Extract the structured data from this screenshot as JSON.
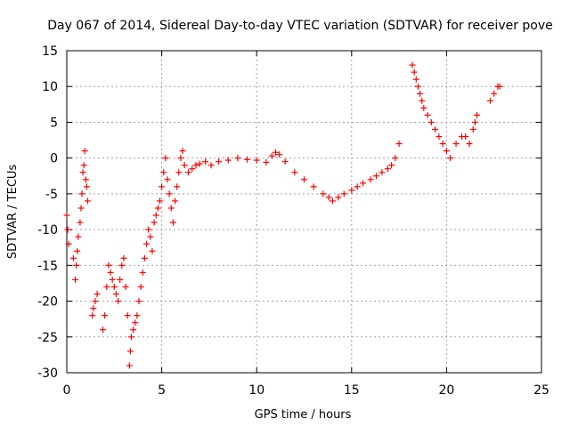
{
  "chart_data": {
    "type": "scatter",
    "title": "Day 067 of 2014, Sidereal Day-to-day VTEC variation (SDTVAR) for receiver pove",
    "xlabel": "GPS time / hours",
    "ylabel": "SDTVAR / TECUs",
    "xlim": [
      0,
      25
    ],
    "ylim": [
      -30,
      15
    ],
    "xticks": [
      0,
      5,
      10,
      15,
      20,
      25
    ],
    "yticks": [
      -30,
      -25,
      -20,
      -15,
      -10,
      -5,
      0,
      5,
      10,
      15
    ],
    "xtick_labels": [
      "0",
      "5",
      "10",
      "15",
      "20",
      "25"
    ],
    "ytick_labels": [
      "-30",
      "-25",
      "-20",
      "-15",
      "-10",
      "-5",
      "0",
      "5",
      "10",
      "15"
    ],
    "grid": true,
    "marker": "+",
    "color": "#ff0000",
    "series": [
      {
        "name": "SDTVAR",
        "x": [
          0.0,
          0.05,
          0.1,
          0.35,
          0.45,
          0.5,
          0.55,
          0.6,
          0.7,
          0.75,
          0.8,
          0.85,
          0.9,
          0.95,
          1.0,
          1.05,
          1.1,
          1.35,
          1.4,
          1.5,
          1.6,
          1.9,
          2.0,
          2.1,
          2.2,
          2.3,
          2.4,
          2.5,
          2.6,
          2.7,
          2.8,
          2.9,
          3.0,
          3.1,
          3.2,
          3.3,
          3.35,
          3.4,
          3.5,
          3.6,
          3.7,
          3.8,
          3.9,
          4.0,
          4.1,
          4.2,
          4.3,
          4.4,
          4.5,
          4.6,
          4.7,
          4.8,
          4.9,
          5.0,
          5.1,
          5.2,
          5.3,
          5.4,
          5.5,
          5.6,
          5.7,
          5.8,
          5.9,
          6.0,
          6.1,
          6.2,
          6.4,
          6.6,
          6.8,
          7.0,
          7.3,
          7.6,
          8.0,
          8.5,
          9.0,
          9.5,
          10.0,
          10.5,
          10.8,
          11.0,
          11.2,
          11.5,
          12.0,
          12.5,
          13.0,
          13.5,
          13.8,
          14.0,
          14.3,
          14.6,
          15.0,
          15.3,
          15.6,
          16.0,
          16.3,
          16.6,
          16.9,
          17.1,
          17.3,
          17.5,
          18.2,
          18.3,
          18.4,
          18.5,
          18.6,
          18.7,
          18.8,
          19.0,
          19.2,
          19.4,
          19.6,
          19.8,
          20.0,
          20.2,
          20.5,
          20.8,
          21.0,
          21.2,
          21.4,
          21.5,
          21.6,
          22.3,
          22.5,
          22.7,
          22.8
        ],
        "y": [
          -8,
          -10,
          -12,
          -14,
          -17,
          -15,
          -13,
          -11,
          -9,
          -7,
          -5,
          -2,
          -1,
          1,
          -3,
          -4,
          -6,
          -22,
          -21,
          -20,
          -19,
          -24,
          -22,
          -18,
          -15,
          -16,
          -17,
          -18,
          -19,
          -20,
          -17,
          -15,
          -14,
          -18,
          -22,
          -29,
          -27,
          -25,
          -24,
          -23,
          -22,
          -20,
          -18,
          -16,
          -14,
          -12,
          -10,
          -11,
          -13,
          -9,
          -8,
          -7,
          -6,
          -4,
          -2,
          0,
          -3,
          -5,
          -7,
          -9,
          -6,
          -4,
          -2,
          0,
          1,
          -1,
          -2,
          -1.5,
          -1,
          -0.8,
          -0.5,
          -1,
          -0.5,
          -0.3,
          0,
          -0.2,
          -0.3,
          -0.6,
          0.3,
          0.8,
          0.5,
          -0.5,
          -2,
          -3,
          -4,
          -5,
          -5.5,
          -6,
          -5.5,
          -5,
          -4.5,
          -4,
          -3.5,
          -3,
          -2.5,
          -2,
          -1.5,
          -1,
          0,
          2,
          13,
          12,
          11,
          10,
          9,
          8,
          7,
          6,
          5,
          4,
          3,
          2,
          1,
          0,
          2,
          3,
          3,
          2,
          4,
          5,
          6,
          8,
          9,
          10,
          10
        ]
      }
    ]
  }
}
